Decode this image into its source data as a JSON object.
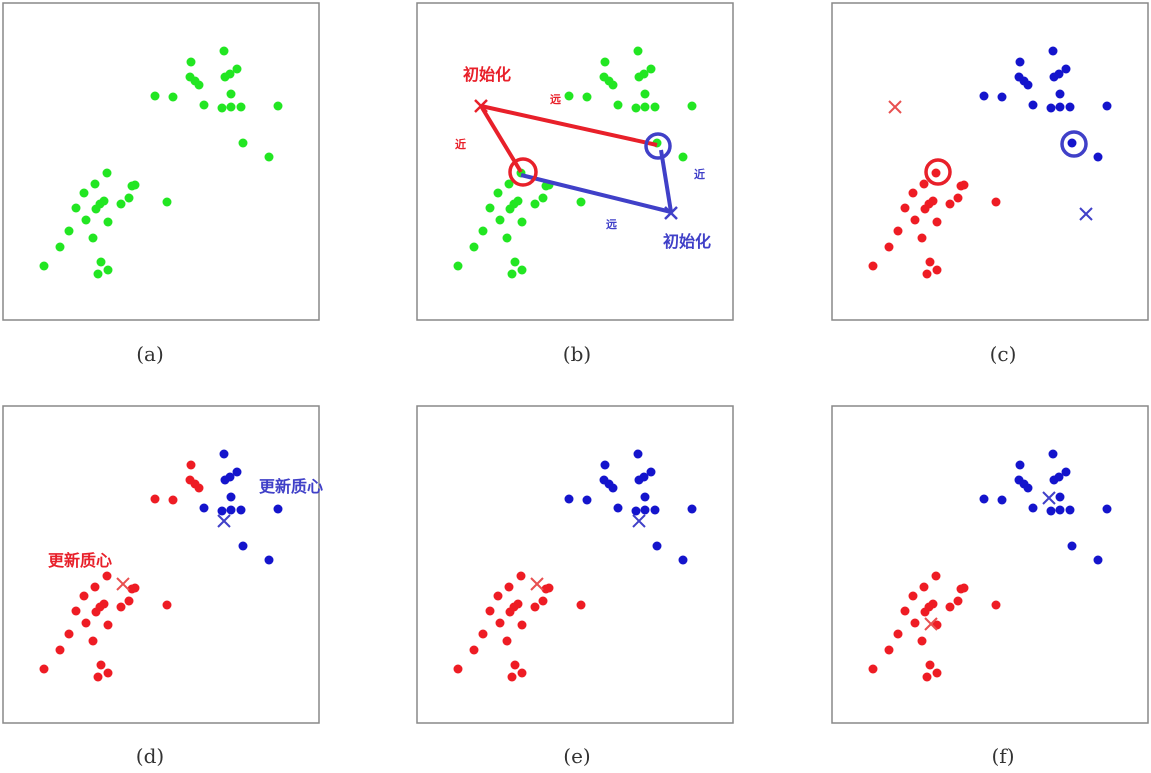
{
  "colors": {
    "green": "#22e622",
    "red": "#ee1c24",
    "blue": "#1414cc",
    "annotation_red": "#e8202a",
    "annotation_blue": "#4040c8",
    "frame": "#888888"
  },
  "panels": [
    {
      "caption": "(a)"
    },
    {
      "caption": "(b)"
    },
    {
      "caption": "(c)"
    },
    {
      "caption": "(d)"
    },
    {
      "caption": "(e)"
    },
    {
      "caption": "(f)"
    }
  ],
  "annotations": {
    "init_label": "初始化",
    "near_label": "近",
    "far_label": "远",
    "update_centroid_label": "更新质心"
  }
}
